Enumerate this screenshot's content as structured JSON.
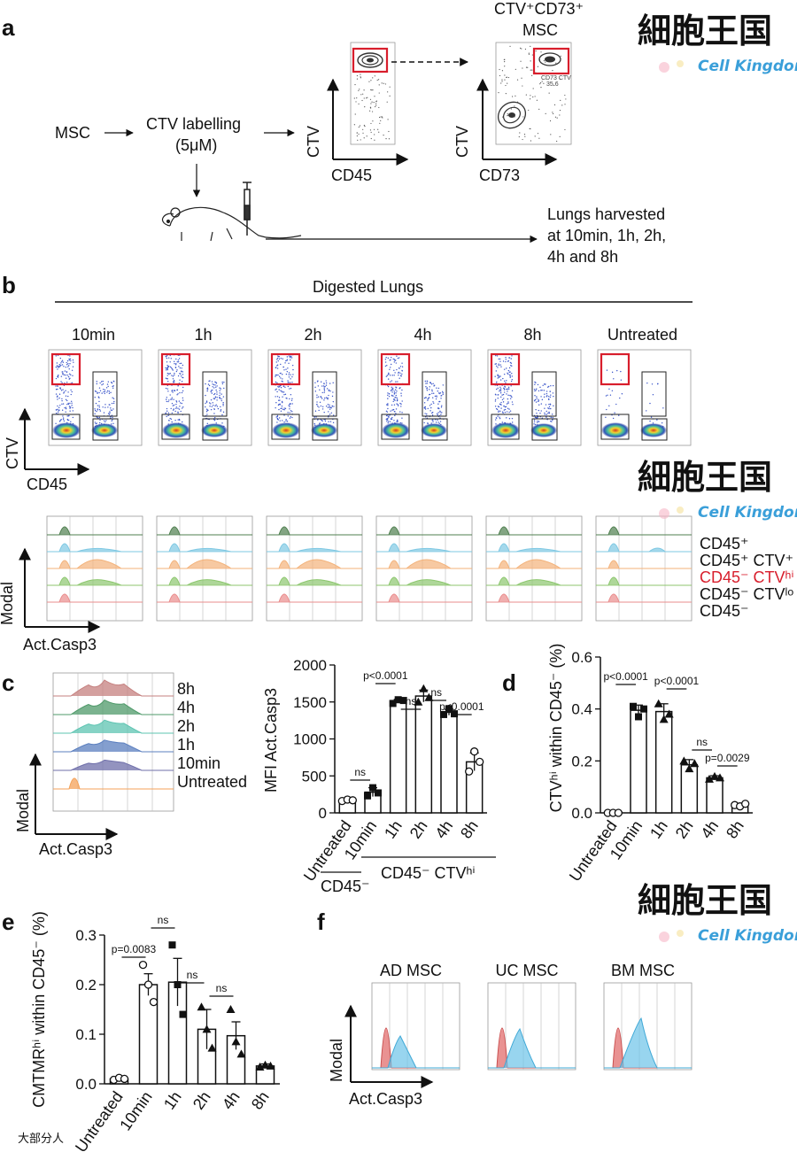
{
  "panel_letters": {
    "a": "a",
    "b": "b",
    "c": "c",
    "d": "d",
    "e": "e",
    "f": "f"
  },
  "panel_a": {
    "msc": "MSC",
    "ctv_labelling_1": "CTV labelling",
    "ctv_labelling_2": "(5μM)",
    "plot1_x": "CD45",
    "plot1_y": "CTV",
    "plot2_x": "CD73",
    "plot2_y": "CTV",
    "gate_title_1": "CTV⁺CD73⁺",
    "gate_title_2": "MSC",
    "gate_small_1": "CD73 CTV",
    "gate_small_2": "35.6",
    "harvest_1": "Lungs harvested",
    "harvest_2": "at 10min, 1h, 2h,",
    "harvest_3": "4h and 8h"
  },
  "panel_b": {
    "title": "Digested Lungs",
    "timepoints": [
      "10min",
      "1h",
      "2h",
      "4h",
      "8h",
      "Untreated"
    ],
    "y_axis": "CTV",
    "x_axis": "CD45",
    "hist_y": "Modal",
    "hist_x": "Act.Casp3",
    "legend": [
      {
        "text": "CD45⁺",
        "color": "#111111"
      },
      {
        "text": "CD45⁺ CTV⁺",
        "color": "#111111"
      },
      {
        "text": "CD45⁻ CTVʰⁱ",
        "color": "#d81e2c"
      },
      {
        "text": "CD45⁻ CTVˡᵒ",
        "color": "#111111"
      },
      {
        "text": "CD45⁻",
        "color": "#111111"
      }
    ],
    "hist_colors": [
      "#4f7f4f",
      "#7ec8e3",
      "#f3b27a",
      "#8cc66d",
      "#e98c8c"
    ]
  },
  "panel_c_hist": {
    "rows": [
      {
        "label": "8h",
        "color": "#c5807f"
      },
      {
        "label": "4h",
        "color": "#4f9a6a"
      },
      {
        "label": "2h",
        "color": "#5ec4b2"
      },
      {
        "label": "1h",
        "color": "#5b7fbf"
      },
      {
        "label": "10min",
        "color": "#6f6faa"
      },
      {
        "label": "Untreated",
        "color": "#f4a259"
      }
    ],
    "y_axis": "Modal",
    "x_axis": "Act.Casp3"
  },
  "icons": {
    "arrow": "right-arrow-icon",
    "mouse": "mouse-icon",
    "syringe": "syringe-icon"
  },
  "watermark": {
    "chinese": "細胞王国",
    "english": "Cell Kingdom"
  },
  "footer": {
    "text": "大部分人"
  },
  "panel_f": {
    "titles": [
      "AD MSC",
      "UC MSC",
      "BM MSC"
    ],
    "y_axis": "Modal",
    "x_axis": "Act.Casp3",
    "colors": {
      "control": "#e26d6d",
      "treated": "#6cc3e8"
    }
  },
  "chart_data": [
    {
      "id": "c",
      "type": "bar",
      "ylabel": "MFI Act.Casp3",
      "ylim": [
        0,
        2000
      ],
      "yticks": [
        "0",
        "500",
        "1000",
        "1500",
        "2000"
      ],
      "categories": [
        "Untreated",
        "10min",
        "1h",
        "2h",
        "4h",
        "8h"
      ],
      "values": [
        170,
        280,
        1510,
        1580,
        1360,
        690
      ],
      "errors": [
        15,
        60,
        25,
        80,
        40,
        120
      ],
      "points": [
        [
          160,
          180,
          170
        ],
        [
          230,
          340,
          270
        ],
        [
          1480,
          1530,
          1520
        ],
        [
          1500,
          1680,
          1560
        ],
        [
          1330,
          1410,
          1340
        ],
        [
          560,
          830,
          690
        ]
      ],
      "markers": [
        "circle",
        "square",
        "square",
        "triangle",
        "square",
        "circle"
      ],
      "group_left": "CD45⁻",
      "group_right": "CD45⁻ CTVʰⁱ",
      "annotations": [
        {
          "from": 0,
          "to": 1,
          "text": "ns"
        },
        {
          "from": 1,
          "to": 2,
          "text": "p<0.0001"
        },
        {
          "from": 2,
          "to": 3,
          "text": "ns"
        },
        {
          "from": 3,
          "to": 4,
          "text": "ns"
        },
        {
          "from": 4,
          "to": 5,
          "text": "p<0.0001"
        }
      ]
    },
    {
      "id": "d",
      "type": "bar",
      "ylabel": "CTVʰⁱ within CD45⁻ (%)",
      "ylim": [
        0,
        0.6
      ],
      "yticks": [
        "0.0",
        "0.2",
        "0.4",
        "0.6"
      ],
      "categories": [
        "Untreated",
        "10min",
        "1h",
        "2h",
        "4h",
        "8h"
      ],
      "values": [
        0.0,
        0.395,
        0.39,
        0.185,
        0.135,
        0.03
      ],
      "errors": [
        0.003,
        0.02,
        0.03,
        0.02,
        0.008,
        0.007
      ],
      "points": [
        [
          0.0,
          0.0,
          0.0
        ],
        [
          0.41,
          0.37,
          0.4
        ],
        [
          0.42,
          0.36,
          0.38
        ],
        [
          0.2,
          0.17,
          0.19
        ],
        [
          0.13,
          0.14,
          0.135
        ],
        [
          0.03,
          0.025,
          0.035
        ]
      ],
      "markers": [
        "circle",
        "square",
        "triangle",
        "triangle",
        "triangle",
        "circle"
      ],
      "annotations": [
        {
          "from": 0,
          "to": 1,
          "text": "p<0.0001"
        },
        {
          "from": 2,
          "to": 3,
          "text": "p<0.0001"
        },
        {
          "from": 3,
          "to": 4,
          "text": "ns"
        },
        {
          "from": 4,
          "to": 5,
          "text": "p=0.0029"
        }
      ]
    },
    {
      "id": "e",
      "type": "bar",
      "ylabel": "CMTMRʰⁱ within CD45⁻ (%)",
      "ylim": [
        0,
        0.3
      ],
      "yticks": [
        "0.0",
        "0.1",
        "0.2",
        "0.3"
      ],
      "categories": [
        "Untreated",
        "10min",
        "1h",
        "2h",
        "4h",
        "8h"
      ],
      "values": [
        0.01,
        0.2,
        0.205,
        0.11,
        0.097,
        0.036
      ],
      "errors": [
        0.004,
        0.022,
        0.048,
        0.04,
        0.028,
        0.004
      ],
      "points": [
        [
          0.008,
          0.012,
          0.01
        ],
        [
          0.24,
          0.2,
          0.165
        ],
        [
          0.28,
          0.2,
          0.14
        ],
        [
          0.155,
          0.11,
          0.072
        ],
        [
          0.15,
          0.085,
          0.06
        ],
        [
          0.034,
          0.038,
          0.036
        ]
      ],
      "markers": [
        "circle",
        "circle",
        "square",
        "triangle",
        "triangle",
        "triangle"
      ],
      "annotations": [
        {
          "from": 0,
          "to": 1,
          "text": "p=0.0083"
        },
        {
          "from": 1,
          "to": 2,
          "text": "ns"
        },
        {
          "from": 2,
          "to": 3,
          "text": "ns"
        },
        {
          "from": 3,
          "to": 4,
          "text": "ns"
        }
      ]
    }
  ]
}
